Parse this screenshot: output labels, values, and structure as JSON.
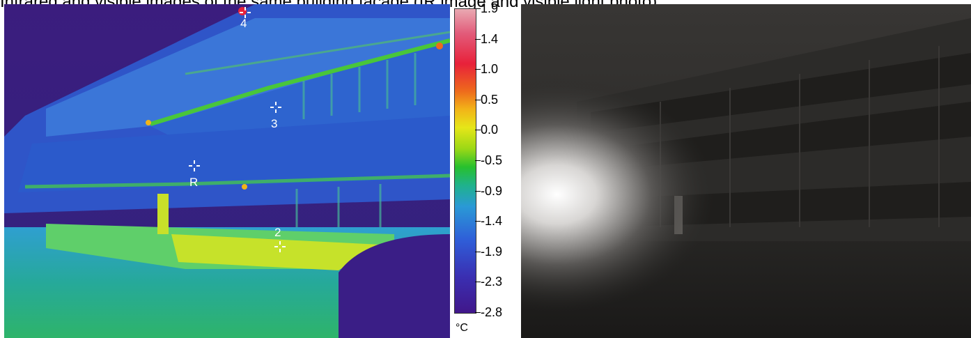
{
  "caption": "Infrared and visible images of the same building facade (IR image and visible light photo)",
  "thermal": {
    "markers": [
      {
        "id": "marker-4",
        "label": "4"
      },
      {
        "id": "marker-3",
        "label": "3"
      },
      {
        "id": "marker-R",
        "label": "R"
      },
      {
        "id": "marker-2",
        "label": "2"
      }
    ]
  },
  "scale": {
    "ticks": [
      "1.9",
      "1.4",
      "1.0",
      "0.5",
      "0.0",
      "-0.5",
      "-0.9",
      "-1.4",
      "-1.9",
      "-2.3",
      "-2.8"
    ],
    "unit": "°C",
    "colors": {
      "max": "#e9a9b2",
      "high": "#e8213a",
      "mid": "#e6e618",
      "lowmid": "#27c02e",
      "low": "#2f5ed8",
      "min": "#41178a"
    }
  }
}
